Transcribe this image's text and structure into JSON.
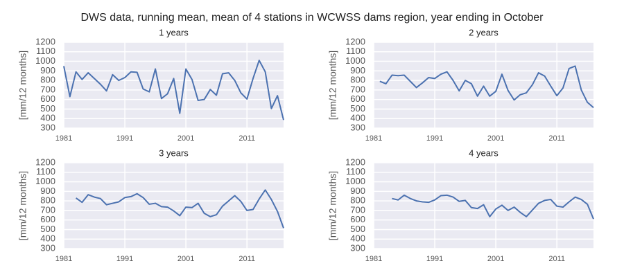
{
  "title": "DWS data, running mean, mean of 4 stations in WCWSS dams region, year ending in October",
  "chart_data": [
    {
      "type": "line",
      "title": "1 years",
      "ylabel": "[mm/12 months]",
      "color": "#4c72b0",
      "grid": true,
      "x": [
        1981,
        1982,
        1983,
        1984,
        1985,
        1986,
        1987,
        1988,
        1989,
        1990,
        1991,
        1992,
        1993,
        1994,
        1995,
        1996,
        1997,
        1998,
        1999,
        2000,
        2001,
        2002,
        2003,
        2004,
        2005,
        2006,
        2007,
        2008,
        2009,
        2010,
        2011,
        2012,
        2013,
        2014,
        2015,
        2016,
        2017
      ],
      "values": [
        950,
        630,
        890,
        810,
        880,
        820,
        760,
        690,
        860,
        800,
        830,
        890,
        885,
        710,
        680,
        920,
        610,
        660,
        820,
        455,
        920,
        810,
        590,
        600,
        705,
        645,
        870,
        880,
        800,
        670,
        605,
        820,
        1010,
        890,
        505,
        640,
        385
      ],
      "xlim": [
        1981,
        2017
      ],
      "xticks": [
        1981,
        1991,
        2001,
        2011
      ],
      "ylim": [
        300,
        1200
      ],
      "yticks": [
        300,
        400,
        500,
        600,
        700,
        800,
        900,
        1000,
        1100,
        1200
      ]
    },
    {
      "type": "line",
      "title": "2 years",
      "ylabel": "[mm/12 months]",
      "color": "#4c72b0",
      "grid": true,
      "x": [
        1981,
        1982,
        1983,
        1984,
        1985,
        1986,
        1987,
        1988,
        1989,
        1990,
        1991,
        1992,
        1993,
        1994,
        1995,
        1996,
        1997,
        1998,
        1999,
        2000,
        2001,
        2002,
        2003,
        2004,
        2005,
        2006,
        2007,
        2008,
        2009,
        2010,
        2011,
        2012,
        2013,
        2014,
        2015,
        2016,
        2017
      ],
      "values": [
        null,
        790,
        765,
        855,
        850,
        855,
        790,
        725,
        775,
        830,
        820,
        865,
        890,
        800,
        690,
        800,
        765,
        635,
        740,
        635,
        685,
        865,
        695,
        595,
        650,
        670,
        755,
        880,
        845,
        740,
        640,
        720,
        925,
        950,
        700,
        570,
        515
      ],
      "xlim": [
        1981,
        2017
      ],
      "xticks": [
        1981,
        1991,
        2001,
        2011
      ],
      "ylim": [
        300,
        1200
      ],
      "yticks": [
        300,
        400,
        500,
        600,
        700,
        800,
        900,
        1000,
        1100,
        1200
      ]
    },
    {
      "type": "line",
      "title": "3 years",
      "ylabel": "[mm/12 months]",
      "color": "#4c72b0",
      "grid": true,
      "x": [
        1981,
        1982,
        1983,
        1984,
        1985,
        1986,
        1987,
        1988,
        1989,
        1990,
        1991,
        1992,
        1993,
        1994,
        1995,
        1996,
        1997,
        1998,
        1999,
        2000,
        2001,
        2002,
        2003,
        2004,
        2005,
        2006,
        2007,
        2008,
        2009,
        2010,
        2011,
        2012,
        2013,
        2014,
        2015,
        2016,
        2017
      ],
      "values": [
        null,
        null,
        830,
        785,
        865,
        840,
        825,
        760,
        775,
        790,
        835,
        845,
        875,
        835,
        765,
        775,
        740,
        735,
        695,
        645,
        735,
        730,
        775,
        670,
        635,
        655,
        745,
        800,
        855,
        795,
        700,
        710,
        820,
        915,
        815,
        690,
        515
      ],
      "xlim": [
        1981,
        2017
      ],
      "xticks": [
        1981,
        1991,
        2001,
        2011
      ],
      "ylim": [
        300,
        1200
      ],
      "yticks": [
        300,
        400,
        500,
        600,
        700,
        800,
        900,
        1000,
        1100,
        1200
      ]
    },
    {
      "type": "line",
      "title": "4 years",
      "ylabel": "[mm/12 months]",
      "color": "#4c72b0",
      "grid": true,
      "x": [
        1981,
        1982,
        1983,
        1984,
        1985,
        1986,
        1987,
        1988,
        1989,
        1990,
        1991,
        1992,
        1993,
        1994,
        1995,
        1996,
        1997,
        1998,
        1999,
        2000,
        2001,
        2002,
        2003,
        2004,
        2005,
        2006,
        2007,
        2008,
        2009,
        2010,
        2011,
        2012,
        2013,
        2014,
        2015,
        2016,
        2017
      ],
      "values": [
        null,
        null,
        null,
        825,
        810,
        860,
        825,
        800,
        790,
        785,
        810,
        855,
        860,
        840,
        795,
        805,
        730,
        720,
        760,
        635,
        715,
        755,
        700,
        735,
        680,
        635,
        705,
        775,
        805,
        815,
        745,
        735,
        790,
        840,
        815,
        765,
        610
      ],
      "xlim": [
        1981,
        2017
      ],
      "xticks": [
        1981,
        1991,
        2001,
        2011
      ],
      "ylim": [
        300,
        1200
      ],
      "yticks": [
        300,
        400,
        500,
        600,
        700,
        800,
        900,
        1000,
        1100,
        1200
      ]
    }
  ]
}
